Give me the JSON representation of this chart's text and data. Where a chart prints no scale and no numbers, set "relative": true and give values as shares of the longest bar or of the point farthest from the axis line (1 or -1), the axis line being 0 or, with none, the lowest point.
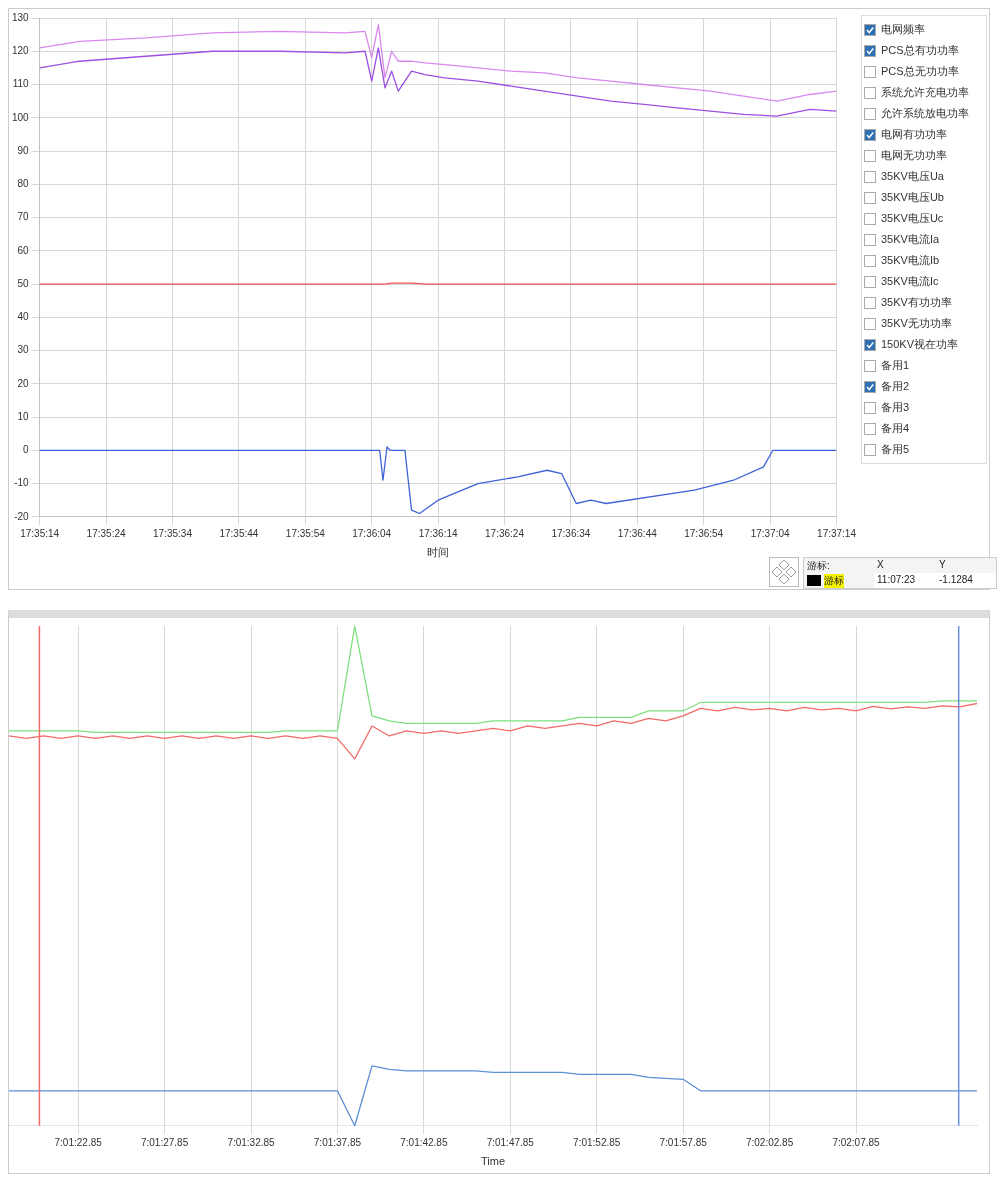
{
  "chart_data": [
    {
      "type": "line",
      "xlabel": "时间",
      "x": [
        17.587222,
        17.588889,
        17.591667,
        17.594444,
        17.597222,
        17.6,
        17.600833,
        17.601111,
        17.601389,
        17.601667,
        17.601944,
        17.602222,
        17.602778,
        17.603333,
        17.604167,
        17.605556,
        17.606944,
        17.608333,
        17.609722,
        17.611111,
        17.6125,
        17.613889,
        17.615278,
        17.616667,
        17.618056,
        17.619444,
        17.620556
      ],
      "series": [
        {
          "color": "#d889ee",
          "values": [
            121,
            123,
            124,
            125.5,
            126,
            125.5,
            126,
            118,
            128,
            112,
            120,
            117,
            117,
            116.5,
            116,
            115,
            114,
            113.5,
            112,
            111,
            110,
            109,
            108,
            106.5,
            105,
            107,
            108
          ]
        },
        {
          "color": "#9d4fe3",
          "values": [
            115,
            117,
            118.5,
            120,
            120,
            119.5,
            120,
            111,
            121,
            109,
            114,
            108,
            114,
            113,
            112,
            111,
            109.5,
            108,
            106.5,
            105,
            104,
            103,
            102,
            101,
            100.5,
            102.5,
            102
          ]
        },
        {
          "color": "#f0505a",
          "values": [
            50,
            50,
            50,
            50,
            50,
            50,
            50,
            50,
            50,
            50,
            50.3,
            50.3,
            50.3,
            50,
            50,
            50,
            50,
            50,
            50,
            50,
            50,
            50,
            50,
            50,
            50,
            50,
            50
          ]
        },
        {
          "color": "#3f63d8",
          "x": [
            17.587222,
            17.601111,
            17.601444,
            17.601583,
            17.60175,
            17.601889,
            17.6025,
            17.602778,
            17.603111,
            17.603889,
            17.605556,
            17.607222,
            17.608444,
            17.609056,
            17.609667,
            17.610278,
            17.610917,
            17.614611,
            17.61625,
            17.6175,
            17.617889,
            17.620556
          ],
          "values": [
            0,
            0,
            0,
            -9,
            1,
            0,
            0,
            -18,
            -19,
            -15,
            -10,
            -8,
            -6,
            -7,
            -16,
            -15,
            -16,
            -12,
            -9,
            -5,
            0,
            0
          ]
        }
      ],
      "xlim": [
        17.587222,
        17.620556
      ],
      "xticks": [
        {
          "value": 17.587222,
          "label": "17:35:14"
        },
        {
          "value": 17.59,
          "label": "17:35:24"
        },
        {
          "value": 17.592778,
          "label": "17:35:34"
        },
        {
          "value": 17.595556,
          "label": "17:35:44"
        },
        {
          "value": 17.598333,
          "label": "17:35:54"
        },
        {
          "value": 17.601111,
          "label": "17:36:04"
        },
        {
          "value": 17.603889,
          "label": "17:36:14"
        },
        {
          "value": 17.606667,
          "label": "17:36:24"
        },
        {
          "value": 17.609444,
          "label": "17:36:34"
        },
        {
          "value": 17.612222,
          "label": "17:36:44"
        },
        {
          "value": 17.615,
          "label": "17:36:54"
        },
        {
          "value": 17.617778,
          "label": "17:37:04"
        },
        {
          "value": 17.620556,
          "label": "17:37:14"
        }
      ],
      "ylim": [
        -20,
        130
      ],
      "yticks": [
        -20,
        -10,
        0,
        10,
        20,
        30,
        40,
        50,
        60,
        70,
        80,
        90,
        100,
        110,
        120,
        130
      ],
      "grid": true,
      "marker": "none",
      "line_style": "solid",
      "annotations": [
        "电网频率",
        "PCS总有功功率",
        "PCS总无功功率",
        "系统允许充电功率",
        "允许系统放电功率",
        "电网有功功率",
        "电网无功功率",
        "35KV电压Ua",
        "35KV电压Ub",
        "35KV电压Uc",
        "35KV电流Ia",
        "35KV电流Ib",
        "35KV电流Ic",
        "35KV有功功率",
        "35KV无功功率",
        "150KV视在功率",
        "备用1",
        "备用2",
        "备用3",
        "备用4",
        "备用5",
        "游标:",
        "X",
        "Y",
        "游标",
        "11:07:23",
        "-1.1284"
      ]
    },
    {
      "type": "line",
      "xlabel": "Time",
      "relative": true,
      "tick_labels": "x",
      "categories": [
        null,
        null,
        null,
        null,
        "7:01:22.85",
        null,
        null,
        null,
        null,
        "7:01:27.85",
        null,
        null,
        null,
        null,
        "7:01:32.85",
        null,
        null,
        null,
        null,
        "7:01:37.85",
        null,
        null,
        null,
        null,
        "7:01:42.85",
        null,
        null,
        null,
        null,
        "7:01:47.85",
        null,
        null,
        null,
        null,
        "7:01:52.85",
        null,
        null,
        null,
        null,
        "7:01:57.85",
        null,
        null,
        null,
        null,
        "7:02:02.85",
        null,
        null,
        null,
        null,
        "7:02:07.85",
        null,
        null,
        null,
        null,
        null,
        null,
        null
      ],
      "series": [
        {
          "color": "#7fe07f",
          "values": [
            0.79,
            0.79,
            0.79,
            0.79,
            0.79,
            0.787,
            0.787,
            0.787,
            0.787,
            0.787,
            0.787,
            0.787,
            0.787,
            0.787,
            0.787,
            0.787,
            0.79,
            0.79,
            0.79,
            0.79,
            1,
            0.82,
            0.81,
            0.805,
            0.805,
            0.805,
            0.805,
            0.805,
            0.81,
            0.81,
            0.81,
            0.81,
            0.81,
            0.817,
            0.817,
            0.817,
            0.817,
            0.83,
            0.83,
            0.83,
            0.847,
            0.847,
            0.847,
            0.847,
            0.847,
            0.847,
            0.847,
            0.847,
            0.847,
            0.847,
            0.847,
            0.847,
            0.847,
            0.847,
            0.85,
            0.85,
            0.85
          ]
        },
        {
          "color": "#f06a6a",
          "values": [
            0.78,
            0.775,
            0.78,
            0.775,
            0.78,
            0.775,
            0.78,
            0.775,
            0.78,
            0.775,
            0.78,
            0.775,
            0.78,
            0.775,
            0.78,
            0.775,
            0.78,
            0.775,
            0.78,
            0.775,
            0.734,
            0.8,
            0.78,
            0.79,
            0.785,
            0.79,
            0.785,
            0.79,
            0.795,
            0.79,
            0.8,
            0.795,
            0.8,
            0.805,
            0.8,
            0.81,
            0.805,
            0.815,
            0.81,
            0.82,
            0.835,
            0.83,
            0.837,
            0.832,
            0.835,
            0.83,
            0.837,
            0.832,
            0.835,
            0.83,
            0.839,
            0.834,
            0.838,
            0.835,
            0.84,
            0.838,
            0.845
          ]
        },
        {
          "color": "#5b8fd6",
          "values": [
            0.07,
            0.07,
            0.07,
            0.07,
            0.07,
            0.07,
            0.07,
            0.07,
            0.07,
            0.07,
            0.07,
            0.07,
            0.07,
            0.07,
            0.07,
            0.07,
            0.07,
            0.07,
            0.07,
            0.07,
            0,
            0.12,
            0.113,
            0.11,
            0.11,
            0.11,
            0.11,
            0.11,
            0.107,
            0.107,
            0.107,
            0.107,
            0.107,
            0.103,
            0.103,
            0.103,
            0.103,
            0.097,
            0.095,
            0.093,
            0.07,
            0.07,
            0.07,
            0.07,
            0.07,
            0.07,
            0.07,
            0.07,
            0.07,
            0.07,
            0.07,
            0.07,
            0.07,
            0.07,
            0.07,
            0.07,
            0.07
          ]
        }
      ],
      "grid": "x",
      "marker": "none",
      "line_style": "solid"
    }
  ]
}
